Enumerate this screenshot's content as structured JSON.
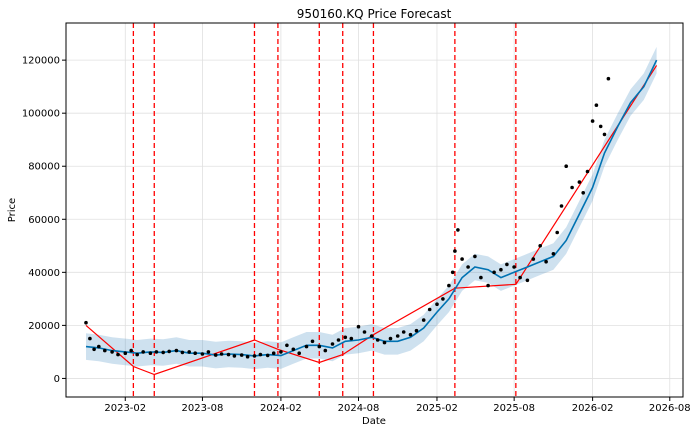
{
  "chart_data": {
    "type": "line",
    "title": "950160.KQ Price Forecast",
    "xlabel": "Date",
    "ylabel": "Price",
    "xlim": [
      "2022-09-15",
      "2026-09-01"
    ],
    "ylim": [
      -7000,
      134000
    ],
    "x_ticks": [
      "2023-02",
      "2023-08",
      "2024-02",
      "2024-08",
      "2025-02",
      "2025-08",
      "2026-02",
      "2026-08"
    ],
    "y_ticks": [
      0,
      20000,
      40000,
      60000,
      80000,
      100000,
      120000
    ],
    "grid": true,
    "changepoints": [
      "2023-02-20",
      "2023-04-10",
      "2023-12-01",
      "2024-01-25",
      "2024-05-01",
      "2024-06-25",
      "2024-09-05",
      "2025-03-15",
      "2025-08-05"
    ],
    "trend": {
      "dates": [
        "2022-11-01",
        "2023-02-20",
        "2023-04-10",
        "2023-12-01",
        "2024-01-25",
        "2024-05-01",
        "2024-06-25",
        "2024-09-05",
        "2025-03-15",
        "2025-08-05",
        "2026-07-01"
      ],
      "values": [
        20000,
        4500,
        1500,
        14500,
        11000,
        6000,
        9000,
        16500,
        34000,
        35500,
        118000
      ]
    },
    "forecast": {
      "dates": [
        "2022-11-01",
        "2022-12-01",
        "2023-01-01",
        "2023-02-01",
        "2023-03-01",
        "2023-04-01",
        "2023-05-01",
        "2023-06-01",
        "2023-07-01",
        "2023-08-01",
        "2023-09-01",
        "2023-10-01",
        "2023-11-01",
        "2023-12-01",
        "2024-01-01",
        "2024-02-01",
        "2024-03-01",
        "2024-04-01",
        "2024-05-01",
        "2024-06-01",
        "2024-07-01",
        "2024-08-01",
        "2024-09-01",
        "2024-10-01",
        "2024-11-01",
        "2024-12-01",
        "2025-01-01",
        "2025-02-01",
        "2025-03-01",
        "2025-04-01",
        "2025-05-01",
        "2025-06-01",
        "2025-07-01",
        "2025-08-01",
        "2025-09-01",
        "2025-10-01",
        "2025-11-01",
        "2025-12-01",
        "2026-01-01",
        "2026-02-01",
        "2026-03-01",
        "2026-04-01",
        "2026-05-01",
        "2026-06-01",
        "2026-07-01"
      ],
      "values": [
        12000,
        11500,
        10500,
        10000,
        9500,
        10000,
        9800,
        10500,
        9500,
        9500,
        8800,
        9200,
        9000,
        8500,
        9000,
        8600,
        10500,
        12500,
        12500,
        11500,
        14000,
        14500,
        15500,
        14000,
        14000,
        15500,
        19000,
        25000,
        30000,
        38000,
        42000,
        41000,
        38000,
        40000,
        42000,
        44000,
        46000,
        52000,
        62000,
        72000,
        85000,
        95000,
        104000,
        110000,
        120000
      ]
    },
    "uncertainty_band": "forecast ± 5000",
    "observed_points": {
      "dates": [
        "2022-11-01",
        "2022-11-10",
        "2022-11-20",
        "2022-12-01",
        "2022-12-15",
        "2023-01-01",
        "2023-01-15",
        "2023-02-01",
        "2023-02-15",
        "2023-03-01",
        "2023-03-15",
        "2023-04-01",
        "2023-04-15",
        "2023-05-01",
        "2023-05-15",
        "2023-06-01",
        "2023-06-15",
        "2023-07-01",
        "2023-07-15",
        "2023-08-01",
        "2023-08-15",
        "2023-09-01",
        "2023-09-15",
        "2023-10-01",
        "2023-10-15",
        "2023-11-01",
        "2023-11-15",
        "2023-12-01",
        "2023-12-15",
        "2024-01-01",
        "2024-01-15",
        "2024-02-01",
        "2024-02-15",
        "2024-03-01",
        "2024-03-15",
        "2024-04-01",
        "2024-04-15",
        "2024-05-01",
        "2024-05-15",
        "2024-06-01",
        "2024-06-15",
        "2024-07-01",
        "2024-07-15",
        "2024-08-01",
        "2024-08-15",
        "2024-09-01",
        "2024-09-15",
        "2024-10-01",
        "2024-10-15",
        "2024-11-01",
        "2024-11-15",
        "2024-12-01",
        "2024-12-15",
        "2025-01-01",
        "2025-01-15",
        "2025-02-01",
        "2025-02-15",
        "2025-03-01",
        "2025-03-10",
        "2025-03-15",
        "2025-03-22",
        "2025-04-01",
        "2025-04-15",
        "2025-05-01",
        "2025-05-15",
        "2025-06-01",
        "2025-06-15",
        "2025-07-01",
        "2025-07-15",
        "2025-08-01",
        "2025-08-15",
        "2025-09-01",
        "2025-09-15",
        "2025-10-01",
        "2025-10-15",
        "2025-11-01",
        "2025-11-10",
        "2025-11-20",
        "2025-12-01",
        "2025-12-15",
        "2026-01-01",
        "2026-01-10",
        "2026-01-20",
        "2026-02-01",
        "2026-02-10",
        "2026-02-20",
        "2026-03-01",
        "2026-03-10"
      ],
      "values": [
        21000,
        15000,
        11000,
        12000,
        10500,
        10000,
        9000,
        9500,
        10500,
        9000,
        10000,
        9500,
        10000,
        9800,
        10200,
        10500,
        9800,
        10000,
        9500,
        9200,
        10000,
        8800,
        9200,
        9000,
        8500,
        8800,
        8200,
        8500,
        9000,
        8700,
        9500,
        10000,
        12500,
        11000,
        9500,
        12000,
        14000,
        12000,
        10500,
        13000,
        14500,
        15500,
        15000,
        19500,
        17500,
        16000,
        14500,
        13500,
        15000,
        16000,
        17500,
        16500,
        18000,
        22000,
        26000,
        28000,
        30000,
        35000,
        40000,
        48000,
        56000,
        45000,
        42000,
        46000,
        38000,
        35000,
        40000,
        41000,
        43000,
        42000,
        38000,
        37000,
        45000,
        50000,
        44000,
        47000,
        55000,
        65000,
        80000,
        72000,
        74000,
        70000,
        78000,
        97000,
        103000,
        95000,
        92000,
        113000
      ]
    }
  }
}
